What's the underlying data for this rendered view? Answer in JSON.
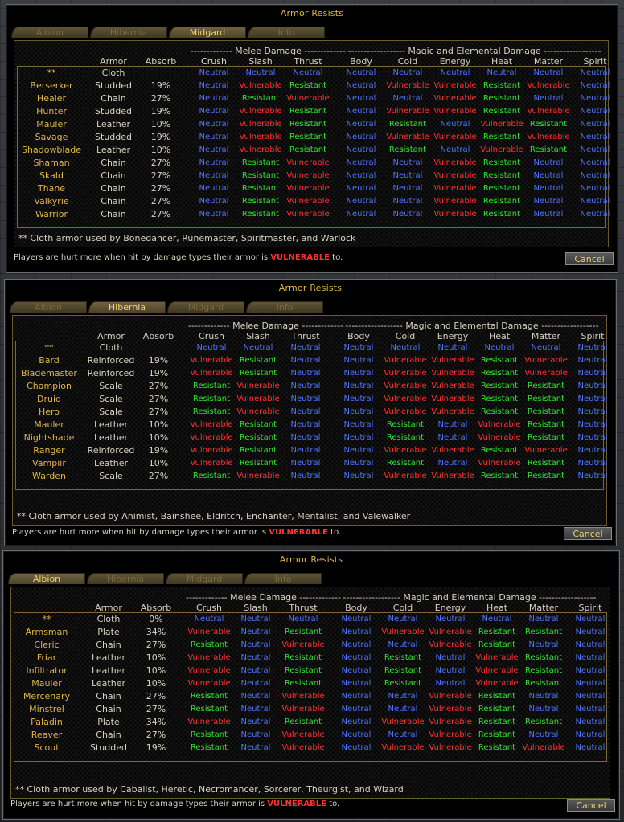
{
  "headers": {
    "armor": "Armor",
    "absorb": "Absorb",
    "melee": "------------- Melee Damage -------------",
    "magic": "------------------ Magic and Elemental Damage ------------------",
    "damage_types": [
      "Crush",
      "Slash",
      "Thrust",
      "Body",
      "Cold",
      "Energy",
      "Heat",
      "Matter",
      "Spirit"
    ]
  },
  "windows": [
    {
      "title": "Armor Resists",
      "tabs": [
        "Albion",
        "Hibernia",
        "Midgard",
        "Info"
      ],
      "active_tab": 2,
      "rows": [
        {
          "cls": "**",
          "armor": "Cloth",
          "absorb": "",
          "res": [
            "Neutral",
            "Neutral",
            "Neutral",
            "Neutral",
            "Neutral",
            "Neutral",
            "Neutral",
            "Neutral",
            "Neutral"
          ]
        },
        {
          "cls": "Berserker",
          "armor": "Studded",
          "absorb": "19%",
          "res": [
            "Neutral",
            "Vulnerable",
            "Resistant",
            "Neutral",
            "Vulnerable",
            "Vulnerable",
            "Resistant",
            "Vulnerable",
            "Neutral"
          ]
        },
        {
          "cls": "Healer",
          "armor": "Chain",
          "absorb": "27%",
          "res": [
            "Neutral",
            "Resistant",
            "Vulnerable",
            "Neutral",
            "Neutral",
            "Vulnerable",
            "Resistant",
            "Neutral",
            "Neutral"
          ]
        },
        {
          "cls": "Hunter",
          "armor": "Studded",
          "absorb": "19%",
          "res": [
            "Neutral",
            "Vulnerable",
            "Resistant",
            "Neutral",
            "Vulnerable",
            "Vulnerable",
            "Resistant",
            "Vulnerable",
            "Neutral"
          ]
        },
        {
          "cls": "Mauler",
          "armor": "Leather",
          "absorb": "10%",
          "res": [
            "Neutral",
            "Vulnerable",
            "Resistant",
            "Neutral",
            "Resistant",
            "Neutral",
            "Vulnerable",
            "Resistant",
            "Neutral"
          ]
        },
        {
          "cls": "Savage",
          "armor": "Studded",
          "absorb": "19%",
          "res": [
            "Neutral",
            "Vulnerable",
            "Resistant",
            "Neutral",
            "Vulnerable",
            "Vulnerable",
            "Resistant",
            "Vulnerable",
            "Neutral"
          ]
        },
        {
          "cls": "Shadowblade",
          "armor": "Leather",
          "absorb": "10%",
          "res": [
            "Neutral",
            "Vulnerable",
            "Resistant",
            "Neutral",
            "Resistant",
            "Neutral",
            "Vulnerable",
            "Resistant",
            "Neutral"
          ]
        },
        {
          "cls": "Shaman",
          "armor": "Chain",
          "absorb": "27%",
          "res": [
            "Neutral",
            "Resistant",
            "Vulnerable",
            "Neutral",
            "Neutral",
            "Vulnerable",
            "Resistant",
            "Neutral",
            "Neutral"
          ]
        },
        {
          "cls": "Skald",
          "armor": "Chain",
          "absorb": "27%",
          "res": [
            "Neutral",
            "Resistant",
            "Vulnerable",
            "Neutral",
            "Neutral",
            "Vulnerable",
            "Resistant",
            "Neutral",
            "Neutral"
          ]
        },
        {
          "cls": "Thane",
          "armor": "Chain",
          "absorb": "27%",
          "res": [
            "Neutral",
            "Resistant",
            "Vulnerable",
            "Neutral",
            "Neutral",
            "Vulnerable",
            "Resistant",
            "Neutral",
            "Neutral"
          ]
        },
        {
          "cls": "Valkyrie",
          "armor": "Chain",
          "absorb": "27%",
          "res": [
            "Neutral",
            "Resistant",
            "Vulnerable",
            "Neutral",
            "Neutral",
            "Vulnerable",
            "Resistant",
            "Neutral",
            "Neutral"
          ]
        },
        {
          "cls": "Warrior",
          "armor": "Chain",
          "absorb": "27%",
          "res": [
            "Neutral",
            "Resistant",
            "Vulnerable",
            "Neutral",
            "Neutral",
            "Vulnerable",
            "Resistant",
            "Neutral",
            "Neutral"
          ]
        }
      ],
      "footnote": "** Cloth armor used by Bonedancer, Runemaster, Spiritmaster, and Warlock",
      "status_prefix": "Players are hurt more when hit by damage types their armor is ",
      "status_highlight": "VULNERABLE",
      "status_suffix": " to.",
      "cancel_label": "Cancel"
    },
    {
      "title": "Armor Resists",
      "tabs": [
        "Albion",
        "Hibernia",
        "Midgard",
        "Info"
      ],
      "active_tab": 1,
      "rows": [
        {
          "cls": "**",
          "armor": "Cloth",
          "absorb": "",
          "res": [
            "Neutral",
            "Neutral",
            "Neutral",
            "Neutral",
            "Neutral",
            "Neutral",
            "Neutral",
            "Neutral",
            "Neutral"
          ]
        },
        {
          "cls": "Bard",
          "armor": "Reinforced",
          "absorb": "19%",
          "res": [
            "Vulnerable",
            "Resistant",
            "Neutral",
            "Neutral",
            "Vulnerable",
            "Vulnerable",
            "Resistant",
            "Vulnerable",
            "Neutral"
          ]
        },
        {
          "cls": "Blademaster",
          "armor": "Reinforced",
          "absorb": "19%",
          "res": [
            "Vulnerable",
            "Resistant",
            "Neutral",
            "Neutral",
            "Vulnerable",
            "Vulnerable",
            "Resistant",
            "Vulnerable",
            "Neutral"
          ]
        },
        {
          "cls": "Champion",
          "armor": "Scale",
          "absorb": "27%",
          "res": [
            "Resistant",
            "Vulnerable",
            "Neutral",
            "Neutral",
            "Vulnerable",
            "Vulnerable",
            "Resistant",
            "Resistant",
            "Neutral"
          ]
        },
        {
          "cls": "Druid",
          "armor": "Scale",
          "absorb": "27%",
          "res": [
            "Resistant",
            "Vulnerable",
            "Neutral",
            "Neutral",
            "Vulnerable",
            "Vulnerable",
            "Resistant",
            "Resistant",
            "Neutral"
          ]
        },
        {
          "cls": "Hero",
          "armor": "Scale",
          "absorb": "27%",
          "res": [
            "Resistant",
            "Vulnerable",
            "Neutral",
            "Neutral",
            "Vulnerable",
            "Vulnerable",
            "Resistant",
            "Resistant",
            "Neutral"
          ]
        },
        {
          "cls": "Mauler",
          "armor": "Leather",
          "absorb": "10%",
          "res": [
            "Vulnerable",
            "Resistant",
            "Neutral",
            "Neutral",
            "Resistant",
            "Neutral",
            "Vulnerable",
            "Resistant",
            "Neutral"
          ]
        },
        {
          "cls": "Nightshade",
          "armor": "Leather",
          "absorb": "10%",
          "res": [
            "Vulnerable",
            "Resistant",
            "Neutral",
            "Neutral",
            "Resistant",
            "Neutral",
            "Vulnerable",
            "Resistant",
            "Neutral"
          ]
        },
        {
          "cls": "Ranger",
          "armor": "Reinforced",
          "absorb": "19%",
          "res": [
            "Vulnerable",
            "Resistant",
            "Neutral",
            "Neutral",
            "Vulnerable",
            "Vulnerable",
            "Resistant",
            "Vulnerable",
            "Neutral"
          ]
        },
        {
          "cls": "Vampiir",
          "armor": "Leather",
          "absorb": "10%",
          "res": [
            "Vulnerable",
            "Resistant",
            "Neutral",
            "Neutral",
            "Resistant",
            "Neutral",
            "Vulnerable",
            "Resistant",
            "Neutral"
          ]
        },
        {
          "cls": "Warden",
          "armor": "Scale",
          "absorb": "27%",
          "res": [
            "Resistant",
            "Vulnerable",
            "Neutral",
            "Neutral",
            "Vulnerable",
            "Vulnerable",
            "Resistant",
            "Resistant",
            "Neutral"
          ]
        }
      ],
      "footnote": "** Cloth armor used by Animist, Bainshee, Eldritch, Enchanter, Mentalist, and Valewalker",
      "status_prefix": "Players are hurt more when hit by damage types their armor is ",
      "status_highlight": "VULNERABLE",
      "status_suffix": " to.",
      "cancel_label": "Cancel"
    },
    {
      "title": "Armor Resists",
      "tabs": [
        "Albion",
        "Hibernia",
        "Midgard",
        "Info"
      ],
      "active_tab": 0,
      "rows": [
        {
          "cls": "**",
          "armor": "Cloth",
          "absorb": "0%",
          "res": [
            "Neutral",
            "Neutral",
            "Neutral",
            "Neutral",
            "Neutral",
            "Neutral",
            "Neutral",
            "Neutral",
            "Neutral"
          ]
        },
        {
          "cls": "Armsman",
          "armor": "Plate",
          "absorb": "34%",
          "res": [
            "Vulnerable",
            "Neutral",
            "Resistant",
            "Neutral",
            "Vulnerable",
            "Vulnerable",
            "Resistant",
            "Resistant",
            "Neutral"
          ]
        },
        {
          "cls": "Cleric",
          "armor": "Chain",
          "absorb": "27%",
          "res": [
            "Resistant",
            "Neutral",
            "Vulnerable",
            "Neutral",
            "Neutral",
            "Vulnerable",
            "Resistant",
            "Neutral",
            "Neutral"
          ]
        },
        {
          "cls": "Friar",
          "armor": "Leather",
          "absorb": "10%",
          "res": [
            "Vulnerable",
            "Neutral",
            "Resistant",
            "Neutral",
            "Resistant",
            "Neutral",
            "Vulnerable",
            "Resistant",
            "Neutral"
          ]
        },
        {
          "cls": "Infiltrator",
          "armor": "Leather",
          "absorb": "10%",
          "res": [
            "Vulnerable",
            "Neutral",
            "Resistant",
            "Neutral",
            "Resistant",
            "Neutral",
            "Vulnerable",
            "Resistant",
            "Neutral"
          ]
        },
        {
          "cls": "Mauler",
          "armor": "Leather",
          "absorb": "10%",
          "res": [
            "Vulnerable",
            "Neutral",
            "Resistant",
            "Neutral",
            "Resistant",
            "Neutral",
            "Vulnerable",
            "Resistant",
            "Neutral"
          ]
        },
        {
          "cls": "Mercenary",
          "armor": "Chain",
          "absorb": "27%",
          "res": [
            "Resistant",
            "Neutral",
            "Vulnerable",
            "Neutral",
            "Neutral",
            "Vulnerable",
            "Resistant",
            "Neutral",
            "Neutral"
          ]
        },
        {
          "cls": "Minstrel",
          "armor": "Chain",
          "absorb": "27%",
          "res": [
            "Resistant",
            "Neutral",
            "Vulnerable",
            "Neutral",
            "Neutral",
            "Vulnerable",
            "Resistant",
            "Neutral",
            "Neutral"
          ]
        },
        {
          "cls": "Paladin",
          "armor": "Plate",
          "absorb": "34%",
          "res": [
            "Vulnerable",
            "Neutral",
            "Resistant",
            "Neutral",
            "Vulnerable",
            "Vulnerable",
            "Resistant",
            "Resistant",
            "Neutral"
          ]
        },
        {
          "cls": "Reaver",
          "armor": "Chain",
          "absorb": "27%",
          "res": [
            "Resistant",
            "Neutral",
            "Vulnerable",
            "Neutral",
            "Neutral",
            "Vulnerable",
            "Resistant",
            "Neutral",
            "Neutral"
          ]
        },
        {
          "cls": "Scout",
          "armor": "Studded",
          "absorb": "19%",
          "res": [
            "Resistant",
            "Neutral",
            "Vulnerable",
            "Neutral",
            "Vulnerable",
            "Vulnerable",
            "Resistant",
            "Vulnerable",
            "Neutral"
          ]
        }
      ],
      "footnote": "** Cloth armor used by Cabalist, Heretic, Necromancer, Sorcerer, Theurgist, and Wizard",
      "status_prefix": "Players are hurt more when hit by damage types their armor is ",
      "status_highlight": "VULNERABLE",
      "status_suffix": " to.",
      "cancel_label": "Cancel"
    }
  ]
}
